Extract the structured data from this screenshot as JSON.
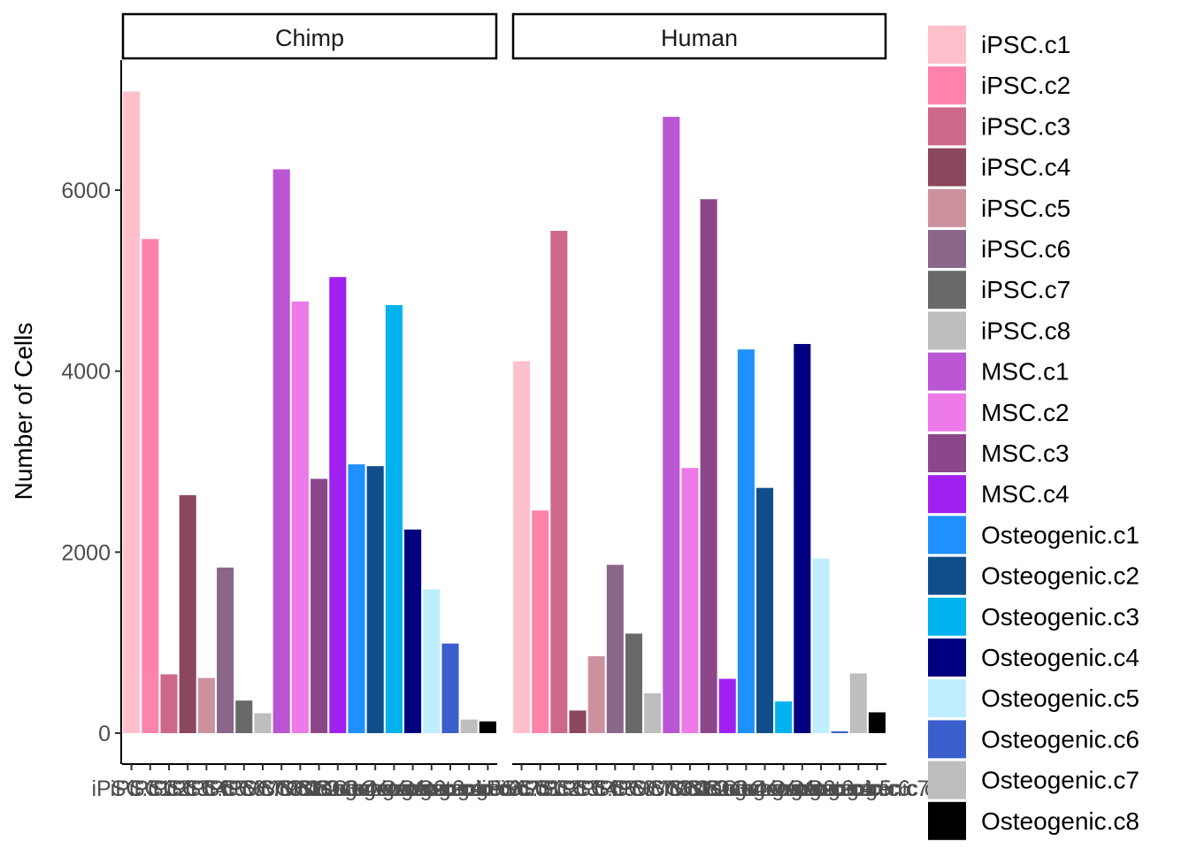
{
  "chart_data": {
    "type": "bar",
    "ylabel": "Number of Cells",
    "xlabel": "",
    "ylim": [
      0,
      7200
    ],
    "yticks": [
      0,
      2000,
      4000,
      6000
    ],
    "grid": false,
    "legend_position": "right",
    "categories": [
      "iPSC.c1",
      "iPSC.c2",
      "iPSC.c3",
      "iPSC.c4",
      "iPSC.c5",
      "iPSC.c6",
      "iPSC.c7",
      "iPSC.c8",
      "MSC.c1",
      "MSC.c2",
      "MSC.c3",
      "MSC.c4",
      "Osteogenic.c1",
      "Osteogenic.c2",
      "Osteogenic.c3",
      "Osteogenic.c4",
      "Osteogenic.c5",
      "Osteogenic.c6",
      "Osteogenic.c7",
      "Osteogenic.c8"
    ],
    "colors": [
      "#FFC0CB",
      "#FF82AB",
      "#CD6889",
      "#8B475D",
      "#CD919E",
      "#8B668B",
      "#696969",
      "#BEBEBE",
      "#BA55D3",
      "#EE7AE9",
      "#8B4789",
      "#A020F0",
      "#1E90FF",
      "#104E8B",
      "#00B2EE",
      "#000080",
      "#BFEFFF",
      "#3A5FCD",
      "#BEBEBE",
      "#000000"
    ],
    "facets": [
      {
        "name": "Chimp",
        "values": [
          7090,
          5460,
          650,
          2630,
          610,
          1830,
          360,
          220,
          6230,
          4770,
          2810,
          5040,
          2970,
          2950,
          4730,
          2250,
          1590,
          990,
          150,
          130
        ]
      },
      {
        "name": "Human",
        "values": [
          4110,
          2460,
          5550,
          250,
          850,
          1860,
          1100,
          440,
          6810,
          2930,
          5900,
          600,
          4240,
          2710,
          350,
          4300,
          1930,
          20,
          660,
          230
        ]
      }
    ],
    "xtick_labels_note": "overlapping illegible category tick labels"
  }
}
